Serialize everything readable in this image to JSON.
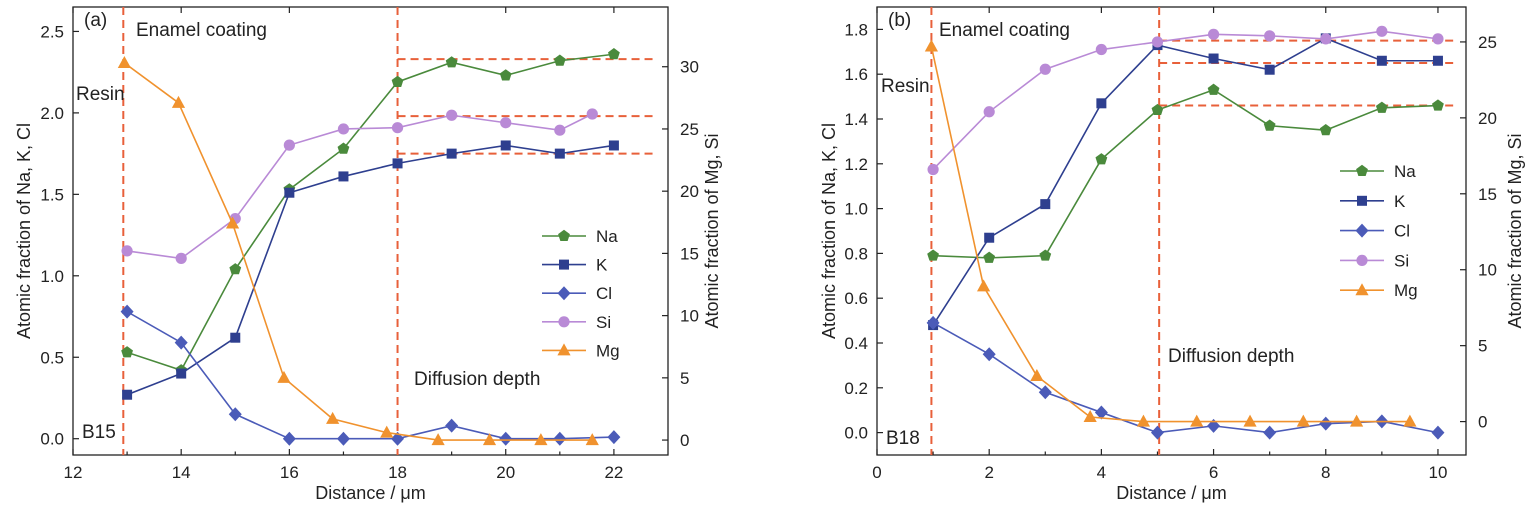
{
  "colors": {
    "Na": "#4a8a3c",
    "K": "#2e3f8f",
    "Cl": "#4b5bb8",
    "Si": "#b98ad6",
    "Mg": "#f0922e",
    "guide": "#e8603a"
  },
  "chart_data": [
    {
      "type": "line",
      "panel_label": "(a)",
      "sample_label": "B15",
      "xlabel": "Distance / μm",
      "ylabel_left": "Atomic fraction of Na, K, Cl",
      "ylabel_right": "Atomic fraction of Mg, Si",
      "xlim": [
        12,
        23
      ],
      "ylim_left": [
        -0.1,
        2.65
      ],
      "ylim_right": [
        -1.2,
        34.8
      ],
      "xticks": [
        12,
        14,
        16,
        18,
        20,
        22
      ],
      "yticks_left": [
        0.0,
        0.5,
        1.0,
        1.5,
        2.0,
        2.5
      ],
      "yticks_right": [
        0,
        5,
        10,
        15,
        20,
        25,
        30
      ],
      "legend_position": "center-right",
      "annotations": {
        "resin": "Resin",
        "enamel": "Enamel coating",
        "diffusion": "Diffusion depth"
      },
      "vlines": [
        12.93,
        18.0
      ],
      "hlines": [
        {
          "axis": "left",
          "y": 2.33,
          "x": [
            18.0,
            22.8
          ],
          "series": "Na"
        },
        {
          "axis": "left",
          "y": 1.98,
          "x": [
            18.0,
            22.8
          ],
          "series": "Si"
        },
        {
          "axis": "left",
          "y": 1.75,
          "x": [
            18.0,
            22.8
          ],
          "series": "K"
        }
      ],
      "series": [
        {
          "name": "Na",
          "axis": "left",
          "marker": "pentagon",
          "x": [
            13,
            14,
            15,
            16,
            17,
            18,
            19,
            20,
            21,
            22
          ],
          "y": [
            0.53,
            0.42,
            1.04,
            1.53,
            1.78,
            2.19,
            2.31,
            2.23,
            2.32,
            2.36
          ]
        },
        {
          "name": "K",
          "axis": "left",
          "marker": "square",
          "x": [
            13,
            14,
            15,
            16,
            17,
            18,
            19,
            20,
            21,
            22
          ],
          "y": [
            0.27,
            0.4,
            0.62,
            1.51,
            1.61,
            1.69,
            1.75,
            1.8,
            1.75,
            1.8
          ]
        },
        {
          "name": "Cl",
          "axis": "left",
          "marker": "diamond",
          "x": [
            13,
            14,
            15,
            16,
            17,
            18,
            19,
            20,
            21,
            22
          ],
          "y": [
            0.78,
            0.59,
            0.15,
            0.0,
            0.0,
            0.0,
            0.08,
            0.0,
            0.0,
            0.01
          ]
        },
        {
          "name": "Si",
          "axis": "right",
          "marker": "circle",
          "x": [
            13,
            14,
            15,
            16,
            17,
            18,
            19,
            20,
            21,
            21.6
          ],
          "y": [
            15.2,
            14.6,
            17.8,
            23.7,
            25.0,
            25.1,
            26.1,
            25.5,
            24.9,
            26.2
          ]
        },
        {
          "name": "Mg",
          "axis": "right",
          "marker": "triangle",
          "x": [
            12.95,
            13.95,
            14.95,
            15.9,
            16.8,
            17.8,
            18.75,
            19.7,
            20.65,
            21.6
          ],
          "y": [
            30.3,
            27.1,
            17.4,
            5.0,
            1.7,
            0.6,
            0.0,
            0.0,
            0.0,
            0.0
          ]
        }
      ]
    },
    {
      "type": "line",
      "panel_label": "(b)",
      "sample_label": "B18",
      "xlabel": "Distance / μm",
      "ylabel_left": "Atomic fraction of Na, K, Cl",
      "ylabel_right": "Atomic fraction of Mg, Si",
      "xlim": [
        0,
        10.5
      ],
      "ylim_left": [
        -0.1,
        1.9
      ],
      "ylim_right": [
        -2.2,
        27.3
      ],
      "xticks": [
        0,
        2,
        4,
        6,
        8,
        10
      ],
      "yticks_left": [
        0.0,
        0.2,
        0.4,
        0.6,
        0.8,
        1.0,
        1.2,
        1.4,
        1.6,
        1.8
      ],
      "yticks_right": [
        0,
        5,
        10,
        15,
        20,
        25
      ],
      "legend_position": "center-right",
      "annotations": {
        "resin": "Resin",
        "enamel": "Enamel coating",
        "diffusion": "Diffusion depth"
      },
      "vlines": [
        0.97,
        5.03
      ],
      "hlines": [
        {
          "axis": "left",
          "y": 1.75,
          "x": [
            5.03,
            10.3
          ],
          "series": "Si"
        },
        {
          "axis": "left",
          "y": 1.65,
          "x": [
            5.03,
            10.3
          ],
          "series": "K"
        },
        {
          "axis": "left",
          "y": 1.46,
          "x": [
            5.03,
            10.3
          ],
          "series": "Na"
        }
      ],
      "series": [
        {
          "name": "Na",
          "axis": "left",
          "marker": "pentagon",
          "x": [
            1,
            2,
            3,
            4,
            5,
            6,
            7,
            8,
            9,
            10
          ],
          "y": [
            0.79,
            0.78,
            0.79,
            1.22,
            1.44,
            1.53,
            1.37,
            1.35,
            1.45,
            1.46
          ]
        },
        {
          "name": "K",
          "axis": "left",
          "marker": "square",
          "x": [
            1,
            2,
            3,
            4,
            5,
            6,
            7,
            8,
            9,
            10
          ],
          "y": [
            0.48,
            0.87,
            1.02,
            1.47,
            1.73,
            1.67,
            1.62,
            1.76,
            1.66,
            1.66
          ]
        },
        {
          "name": "Cl",
          "axis": "left",
          "marker": "diamond",
          "x": [
            1,
            2,
            3,
            4,
            5,
            6,
            7,
            8,
            9,
            10
          ],
          "y": [
            0.49,
            0.35,
            0.18,
            0.09,
            0.0,
            0.03,
            0.0,
            0.04,
            0.05,
            0.0
          ]
        },
        {
          "name": "Si",
          "axis": "right",
          "marker": "circle",
          "x": [
            1,
            2,
            3,
            4,
            5,
            6,
            7,
            8,
            9,
            10
          ],
          "y": [
            16.6,
            20.4,
            23.2,
            24.5,
            25.0,
            25.5,
            25.4,
            25.2,
            25.7,
            25.2
          ]
        },
        {
          "name": "Mg",
          "axis": "right",
          "marker": "triangle",
          "x": [
            0.97,
            1.9,
            2.85,
            3.8,
            4.75,
            5.7,
            6.65,
            7.6,
            8.55,
            9.5
          ],
          "y": [
            24.7,
            8.9,
            3.0,
            0.3,
            0.0,
            0.0,
            0.0,
            0.0,
            0.0,
            0.0
          ]
        }
      ]
    }
  ]
}
